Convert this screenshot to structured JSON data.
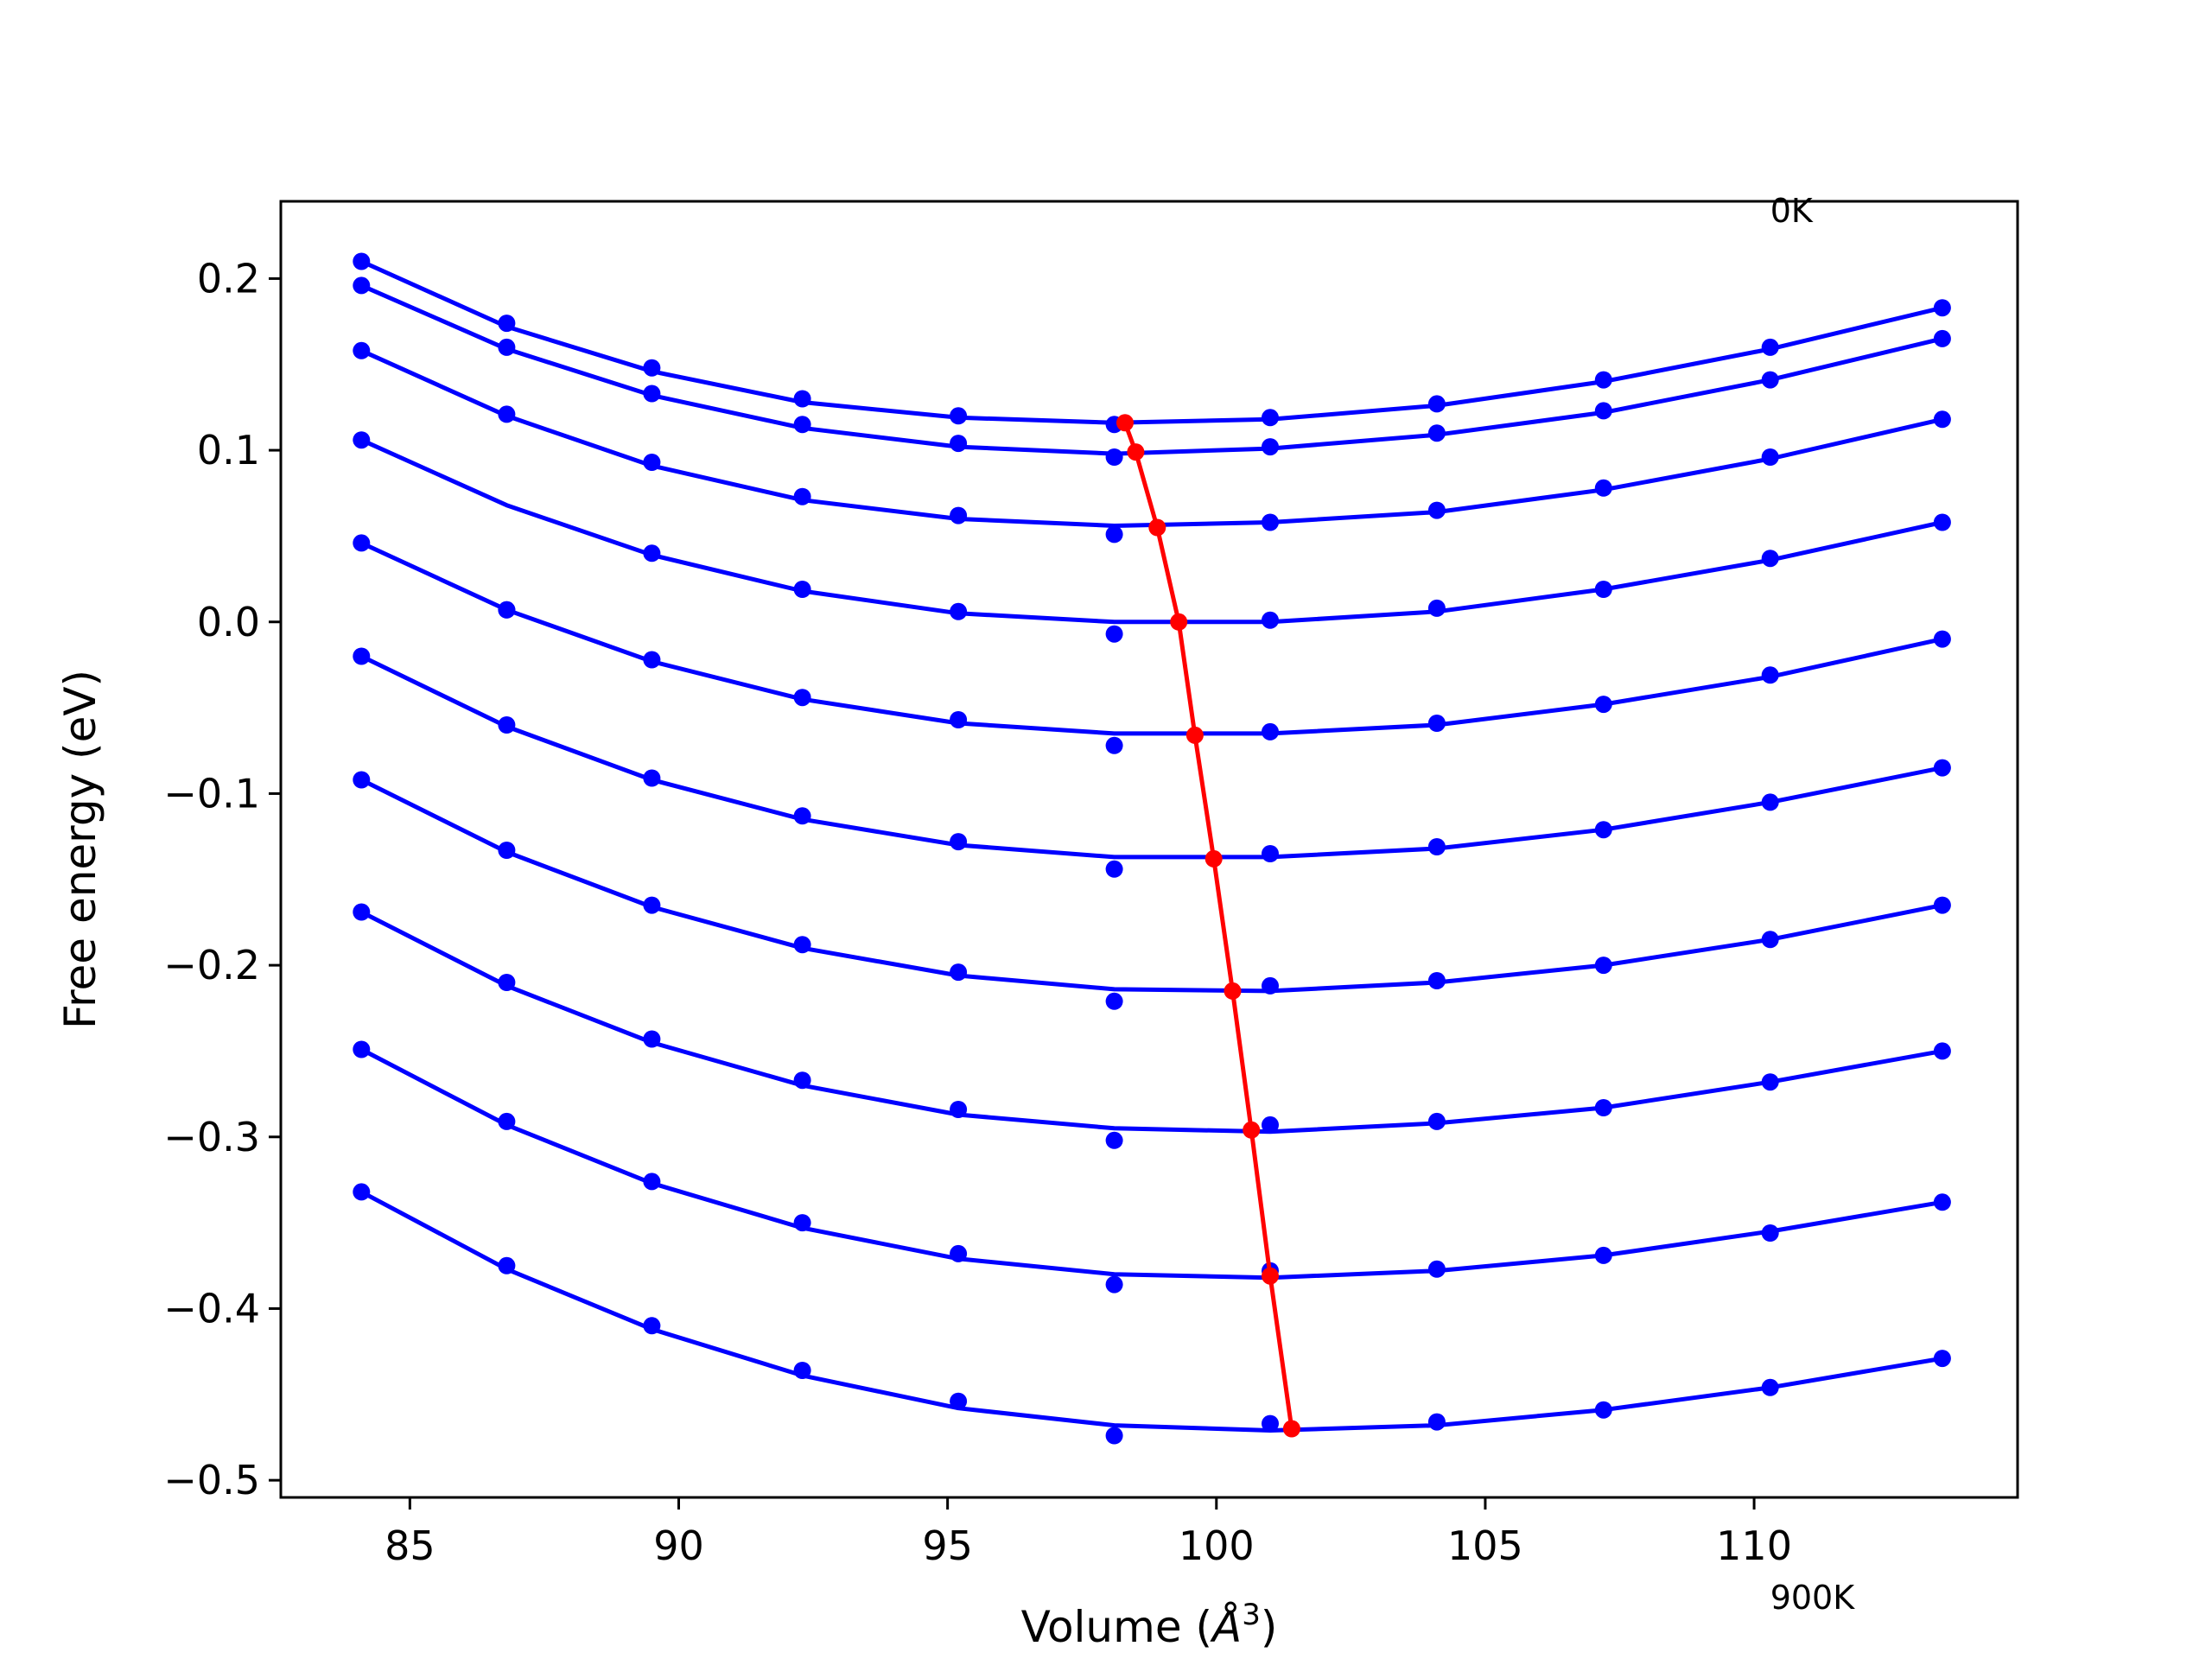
{
  "chart_data": {
    "type": "line",
    "title": "",
    "xlabel": "Volume (Å³)",
    "xlabel_base": "Volume (",
    "xlabel_symbol": "Å",
    "xlabel_sup": "3",
    "xlabel_tail": ")",
    "ylabel": "Free energy (eV)",
    "xlim": [
      82.6,
      114.9
    ],
    "ylim": [
      -0.51,
      0.245
    ],
    "xticks": [
      85,
      90,
      95,
      100,
      105,
      110
    ],
    "xtick_labels": [
      "85",
      "90",
      "95",
      "100",
      "105",
      "110"
    ],
    "yticks": [
      0.2,
      0.1,
      0.0,
      -0.1,
      -0.2,
      -0.3,
      -0.4,
      -0.5
    ],
    "ytick_labels": [
      "0.2",
      "0.1",
      "0.0",
      "−0.1",
      "−0.2",
      "−0.3",
      "−0.4",
      "−0.5"
    ],
    "annotations": [
      {
        "text": "0K",
        "x": 110.3,
        "y": 0.233
      },
      {
        "text": "900K",
        "x": 110.3,
        "y": -0.575
      }
    ],
    "x": [
      84.1,
      86.8,
      89.5,
      92.3,
      95.2,
      98.1,
      101.0,
      104.1,
      107.2,
      110.3,
      113.5
    ],
    "grid": false,
    "colors": {
      "curves": "#0000ff",
      "minima": "#ff0000"
    },
    "series": [
      {
        "points": [
          0.21,
          0.174,
          0.148,
          0.13,
          0.12,
          0.115,
          0.119,
          0.127,
          0.141,
          0.16,
          0.183
        ],
        "fit": [
          [
            84.1,
            0.21
          ],
          [
            86.8,
            0.172
          ],
          [
            89.5,
            0.146
          ],
          [
            92.3,
            0.128
          ],
          [
            95.2,
            0.119
          ],
          [
            98.1,
            0.116
          ],
          [
            101.0,
            0.118
          ],
          [
            104.1,
            0.126
          ],
          [
            107.2,
            0.14
          ],
          [
            110.3,
            0.159
          ],
          [
            113.5,
            0.183
          ]
        ]
      },
      {
        "points": [
          0.196,
          0.16,
          0.133,
          0.115,
          0.104,
          0.096,
          0.102,
          0.11,
          0.123,
          0.141,
          0.165
        ],
        "fit": [
          [
            84.1,
            0.196
          ],
          [
            86.8,
            0.159
          ],
          [
            89.5,
            0.132
          ],
          [
            92.3,
            0.113
          ],
          [
            95.2,
            0.102
          ],
          [
            98.1,
            0.098
          ],
          [
            101.0,
            0.101
          ],
          [
            104.1,
            0.109
          ],
          [
            107.2,
            0.122
          ],
          [
            110.3,
            0.141
          ],
          [
            113.5,
            0.165
          ]
        ]
      },
      {
        "points": [
          0.158,
          0.121,
          0.093,
          0.073,
          0.062,
          0.051,
          0.058,
          0.065,
          0.078,
          0.096,
          0.118
        ],
        "fit": [
          [
            84.1,
            0.158
          ],
          [
            86.8,
            0.12
          ],
          [
            89.5,
            0.091
          ],
          [
            92.3,
            0.071
          ],
          [
            95.2,
            0.06
          ],
          [
            98.1,
            0.056
          ],
          [
            101.0,
            0.058
          ],
          [
            104.1,
            0.064
          ],
          [
            107.2,
            0.077
          ],
          [
            110.3,
            0.095
          ],
          [
            113.5,
            0.118
          ]
        ]
      },
      {
        "points": [
          0.106,
          0.007,
          0.04,
          0.019,
          0.006,
          -0.007,
          0.001,
          0.008,
          0.019,
          0.037,
          0.058
        ],
        "fit": [
          [
            84.1,
            0.106
          ],
          [
            86.8,
            0.068
          ],
          [
            89.5,
            0.039
          ],
          [
            92.3,
            0.018
          ],
          [
            95.2,
            0.005
          ],
          [
            98.1,
            0.0
          ],
          [
            101.0,
            0.0
          ],
          [
            104.1,
            0.006
          ],
          [
            107.2,
            0.019
          ],
          [
            110.3,
            0.036
          ],
          [
            113.5,
            0.058
          ]
        ]
      },
      {
        "points": [
          0.046,
          0.007,
          -0.022,
          -0.044,
          -0.057,
          -0.072,
          -0.064,
          -0.059,
          -0.048,
          -0.031,
          -0.01
        ],
        "fit": [
          [
            84.1,
            0.046
          ],
          [
            86.8,
            0.007
          ],
          [
            89.5,
            -0.023
          ],
          [
            92.3,
            -0.045
          ],
          [
            95.2,
            -0.059
          ],
          [
            98.1,
            -0.065
          ],
          [
            101.0,
            -0.065
          ],
          [
            104.1,
            -0.06
          ],
          [
            107.2,
            -0.048
          ],
          [
            110.3,
            -0.032
          ],
          [
            113.5,
            -0.01
          ]
        ]
      },
      {
        "points": [
          -0.02,
          -0.06,
          -0.091,
          -0.113,
          -0.128,
          -0.144,
          -0.135,
          -0.131,
          -0.121,
          -0.105,
          -0.085
        ],
        "fit": [
          [
            84.1,
            -0.02
          ],
          [
            86.8,
            -0.061
          ],
          [
            89.5,
            -0.092
          ],
          [
            92.3,
            -0.115
          ],
          [
            95.2,
            -0.13
          ],
          [
            98.1,
            -0.137
          ],
          [
            101.0,
            -0.137
          ],
          [
            104.1,
            -0.132
          ],
          [
            107.2,
            -0.121
          ],
          [
            110.3,
            -0.105
          ],
          [
            113.5,
            -0.085
          ]
        ]
      },
      {
        "points": [
          -0.092,
          -0.133,
          -0.165,
          -0.188,
          -0.204,
          -0.221,
          -0.212,
          -0.209,
          -0.2,
          -0.185,
          -0.165
        ],
        "fit": [
          [
            84.1,
            -0.092
          ],
          [
            86.8,
            -0.134
          ],
          [
            89.5,
            -0.166
          ],
          [
            92.3,
            -0.19
          ],
          [
            95.2,
            -0.206
          ],
          [
            98.1,
            -0.214
          ],
          [
            101.0,
            -0.215
          ],
          [
            104.1,
            -0.21
          ],
          [
            107.2,
            -0.2
          ],
          [
            110.3,
            -0.185
          ],
          [
            113.5,
            -0.165
          ]
        ]
      },
      {
        "points": [
          -0.169,
          -0.21,
          -0.243,
          -0.267,
          -0.284,
          -0.302,
          -0.293,
          -0.291,
          -0.283,
          -0.268,
          -0.25
        ],
        "fit": [
          [
            84.1,
            -0.169
          ],
          [
            86.8,
            -0.212
          ],
          [
            89.5,
            -0.245
          ],
          [
            92.3,
            -0.27
          ],
          [
            95.2,
            -0.287
          ],
          [
            98.1,
            -0.295
          ],
          [
            101.0,
            -0.297
          ],
          [
            104.1,
            -0.292
          ],
          [
            107.2,
            -0.283
          ],
          [
            110.3,
            -0.268
          ],
          [
            113.5,
            -0.25
          ]
        ]
      },
      {
        "points": [
          -0.249,
          -0.291,
          -0.326,
          -0.35,
          -0.368,
          -0.386,
          -0.378,
          -0.377,
          -0.369,
          -0.356,
          -0.338
        ],
        "fit": [
          [
            84.1,
            -0.249
          ],
          [
            86.8,
            -0.293
          ],
          [
            89.5,
            -0.327
          ],
          [
            92.3,
            -0.353
          ],
          [
            95.2,
            -0.371
          ],
          [
            98.1,
            -0.38
          ],
          [
            101.0,
            -0.382
          ],
          [
            104.1,
            -0.378
          ],
          [
            107.2,
            -0.369
          ],
          [
            110.3,
            -0.355
          ],
          [
            113.5,
            -0.338
          ]
        ]
      },
      {
        "points": [
          -0.332,
          -0.375,
          -0.41,
          -0.436,
          -0.454,
          -0.474,
          -0.467,
          -0.466,
          -0.459,
          -0.446,
          -0.429
        ],
        "fit": [
          [
            84.1,
            -0.332
          ],
          [
            86.8,
            -0.377
          ],
          [
            89.5,
            -0.412
          ],
          [
            92.3,
            -0.439
          ],
          [
            95.2,
            -0.458
          ],
          [
            98.1,
            -0.468
          ],
          [
            101.0,
            -0.471
          ],
          [
            104.1,
            -0.468
          ],
          [
            107.2,
            -0.459
          ],
          [
            110.3,
            -0.446
          ],
          [
            113.5,
            -0.429
          ]
        ]
      }
    ],
    "minima_line": {
      "x": [
        98.3,
        98.5,
        98.9,
        99.3,
        99.6,
        99.95,
        100.3,
        100.65,
        101.0,
        101.4
      ],
      "y": [
        0.116,
        0.099,
        0.055,
        0.0,
        -0.066,
        -0.138,
        -0.215,
        -0.296,
        -0.381,
        -0.47
      ]
    }
  }
}
